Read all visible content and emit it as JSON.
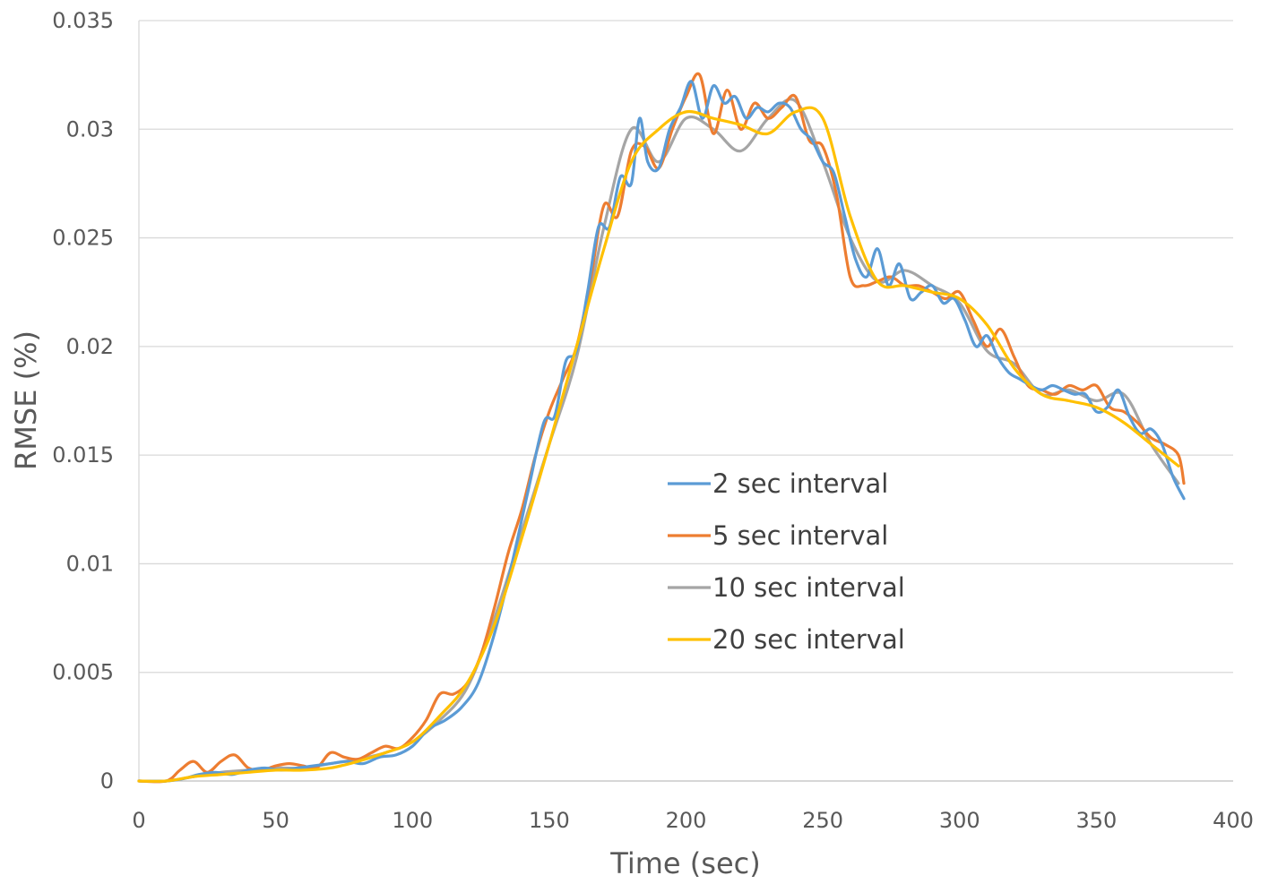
{
  "chart_data": {
    "type": "line",
    "title": "",
    "xlabel": "Time (sec)",
    "ylabel": "RMSE (%)",
    "xlim": [
      0,
      400
    ],
    "ylim": [
      0,
      0.035
    ],
    "x_ticks": [
      "0",
      "50",
      "100",
      "150",
      "200",
      "250",
      "300",
      "350",
      "400"
    ],
    "y_ticks": [
      "0",
      "0.005",
      "0.01",
      "0.015",
      "0.02",
      "0.025",
      "0.03",
      "0.035"
    ],
    "grid": "horizontal",
    "legend_position": "center-right",
    "series": [
      {
        "name": "2 sec interval",
        "color": "#5B9BD5",
        "x": [
          0,
          10,
          16,
          22,
          28,
          34,
          40,
          46,
          52,
          58,
          64,
          70,
          76,
          82,
          88,
          94,
          100,
          106,
          112,
          118,
          124,
          130,
          136,
          142,
          148,
          152,
          156,
          160,
          164,
          168,
          172,
          176,
          180,
          183,
          186,
          190,
          194,
          198,
          202,
          206,
          210,
          214,
          218,
          222,
          226,
          230,
          234,
          238,
          242,
          246,
          250,
          254,
          258,
          262,
          266,
          270,
          274,
          278,
          282,
          286,
          290,
          294,
          298,
          302,
          306,
          310,
          314,
          318,
          322,
          326,
          330,
          334,
          338,
          342,
          346,
          350,
          354,
          358,
          362,
          366,
          370,
          374,
          378,
          382
        ],
        "y": [
          0,
          0,
          0.0001,
          0.0003,
          0.0004,
          0.0003,
          0.0005,
          0.0006,
          0.0005,
          0.0006,
          0.0007,
          0.0008,
          0.0009,
          0.0008,
          0.0011,
          0.0012,
          0.0016,
          0.0024,
          0.0028,
          0.0034,
          0.0045,
          0.0068,
          0.0098,
          0.0132,
          0.0165,
          0.0168,
          0.0193,
          0.0198,
          0.0225,
          0.0255,
          0.0255,
          0.0278,
          0.0275,
          0.0305,
          0.0285,
          0.0282,
          0.03,
          0.031,
          0.0322,
          0.0305,
          0.032,
          0.0312,
          0.0315,
          0.0305,
          0.031,
          0.0308,
          0.0312,
          0.031,
          0.03,
          0.0295,
          0.0285,
          0.028,
          0.026,
          0.024,
          0.0232,
          0.0245,
          0.0228,
          0.0238,
          0.0222,
          0.0225,
          0.0228,
          0.022,
          0.0222,
          0.0212,
          0.02,
          0.0205,
          0.0195,
          0.0188,
          0.0185,
          0.0182,
          0.018,
          0.0182,
          0.018,
          0.0178,
          0.0178,
          0.017,
          0.0172,
          0.018,
          0.0168,
          0.016,
          0.0162,
          0.0155,
          0.014,
          0.013
        ]
      },
      {
        "name": "5 sec interval",
        "color": "#ED7D31",
        "x": [
          0,
          10,
          15,
          20,
          25,
          30,
          35,
          40,
          45,
          50,
          55,
          60,
          65,
          70,
          75,
          80,
          85,
          90,
          95,
          100,
          105,
          110,
          115,
          120,
          125,
          130,
          135,
          140,
          145,
          150,
          155,
          160,
          165,
          170,
          175,
          180,
          185,
          190,
          195,
          200,
          205,
          210,
          215,
          220,
          225,
          230,
          235,
          240,
          245,
          250,
          255,
          260,
          265,
          270,
          275,
          280,
          285,
          290,
          295,
          300,
          305,
          310,
          315,
          320,
          325,
          330,
          335,
          340,
          345,
          350,
          355,
          360,
          365,
          370,
          375,
          380,
          382
        ],
        "y": [
          0,
          0,
          0.0005,
          0.0009,
          0.0004,
          0.0009,
          0.0012,
          0.0006,
          0.0005,
          0.0007,
          0.0008,
          0.0007,
          0.0006,
          0.0013,
          0.0011,
          0.001,
          0.0013,
          0.0016,
          0.0015,
          0.002,
          0.0028,
          0.004,
          0.004,
          0.0045,
          0.0058,
          0.008,
          0.0105,
          0.0125,
          0.015,
          0.017,
          0.0185,
          0.02,
          0.023,
          0.0265,
          0.026,
          0.029,
          0.0292,
          0.0282,
          0.03,
          0.0315,
          0.0325,
          0.0298,
          0.0318,
          0.03,
          0.0312,
          0.0305,
          0.031,
          0.0315,
          0.0295,
          0.0292,
          0.027,
          0.0232,
          0.0228,
          0.023,
          0.0232,
          0.0228,
          0.0228,
          0.0225,
          0.0222,
          0.0225,
          0.0212,
          0.02,
          0.0208,
          0.0195,
          0.0182,
          0.018,
          0.0178,
          0.0182,
          0.018,
          0.0182,
          0.0172,
          0.017,
          0.0165,
          0.0158,
          0.0155,
          0.015,
          0.0137
        ]
      },
      {
        "name": "10 sec interval",
        "color": "#A5A5A5",
        "x": [
          0,
          10,
          20,
          30,
          40,
          50,
          60,
          70,
          80,
          90,
          100,
          110,
          120,
          130,
          140,
          150,
          160,
          170,
          180,
          190,
          200,
          210,
          220,
          230,
          240,
          250,
          260,
          270,
          280,
          290,
          300,
          310,
          320,
          330,
          340,
          350,
          360,
          370,
          380
        ],
        "y": [
          0,
          0,
          0.0002,
          0.0004,
          0.0005,
          0.0006,
          0.0006,
          0.0008,
          0.001,
          0.0013,
          0.0018,
          0.0028,
          0.0043,
          0.0075,
          0.0115,
          0.0155,
          0.0195,
          0.0255,
          0.03,
          0.0285,
          0.0305,
          0.03,
          0.029,
          0.0305,
          0.0313,
          0.0285,
          0.025,
          0.023,
          0.0235,
          0.0228,
          0.022,
          0.0198,
          0.0192,
          0.0178,
          0.018,
          0.0175,
          0.0178,
          0.0155,
          0.0137
        ]
      },
      {
        "name": "20 sec interval",
        "color": "#FFC000",
        "x": [
          0,
          10,
          20,
          30,
          40,
          50,
          60,
          70,
          80,
          90,
          100,
          110,
          120,
          130,
          140,
          150,
          160,
          170,
          180,
          190,
          200,
          210,
          220,
          230,
          240,
          250,
          260,
          270,
          280,
          290,
          300,
          310,
          320,
          330,
          340,
          350,
          360,
          370,
          380
        ],
        "y": [
          0,
          0,
          0.0002,
          0.0003,
          0.0004,
          0.0005,
          0.0005,
          0.0006,
          0.0009,
          0.0013,
          0.0018,
          0.003,
          0.0045,
          0.0072,
          0.0112,
          0.0155,
          0.02,
          0.0245,
          0.0285,
          0.03,
          0.0308,
          0.0305,
          0.0302,
          0.0298,
          0.0308,
          0.0305,
          0.026,
          0.023,
          0.0228,
          0.0225,
          0.0222,
          0.021,
          0.019,
          0.0178,
          0.0175,
          0.0172,
          0.0165,
          0.0155,
          0.0145
        ]
      }
    ]
  }
}
